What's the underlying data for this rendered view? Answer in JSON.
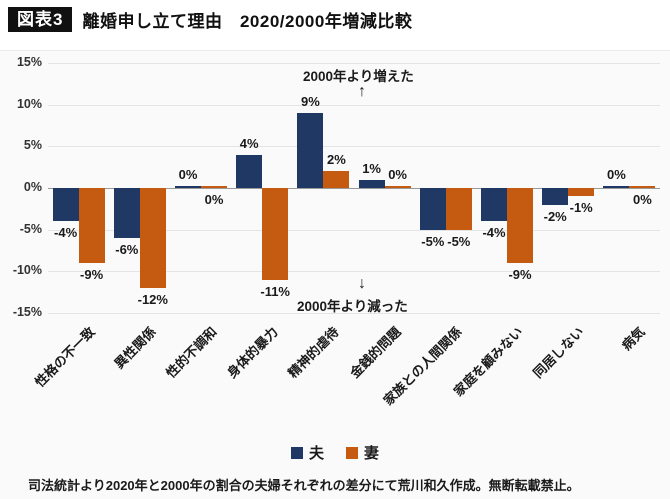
{
  "header": {
    "badge": "図表3",
    "title": "離婚申し立て理由　2020/2000年増減比較"
  },
  "chart_data": {
    "type": "bar",
    "title": "離婚申し立て理由 2020/2000年増減比較",
    "categories": [
      "性格の不一致",
      "異性関係",
      "性的不調和",
      "身体的暴力",
      "精神的虐待",
      "金銭的問題",
      "家族との人間関係",
      "家庭を顧みない",
      "同居しない",
      "病気"
    ],
    "series": [
      {
        "name": "夫",
        "color": "#1F3864",
        "values": [
          -4,
          -6,
          0,
          4,
          9,
          1,
          -5,
          -4,
          -2,
          0
        ],
        "label_sides": [
          "below",
          "below",
          "above",
          "above",
          "above",
          "above",
          "below",
          "below",
          "below",
          "above"
        ]
      },
      {
        "name": "妻",
        "color": "#C55A11",
        "values": [
          -9,
          -12,
          0,
          -11,
          2,
          0,
          -5,
          -9,
          -1,
          0
        ],
        "label_sides": [
          "below",
          "below",
          "below",
          "below",
          "above",
          "above",
          "below",
          "below",
          "below",
          "below"
        ]
      }
    ],
    "ylim": [
      -15,
      15
    ],
    "yticks": [
      "15%",
      "10%",
      "5%",
      "0%",
      "-5%",
      "-10%",
      "-15%"
    ],
    "grid": true,
    "legend_position": "bottom",
    "value_suffix": "%",
    "annotations": [
      {
        "direction": "up",
        "text": "2000年より増えた",
        "arrow": "↑"
      },
      {
        "direction": "down",
        "text": "2000年より減った",
        "arrow": "↓"
      }
    ]
  },
  "footer": {
    "note": "司法統計より2020年と2000年の割合の夫婦それぞれの差分にて荒川和久作成。無断転載禁止。"
  }
}
